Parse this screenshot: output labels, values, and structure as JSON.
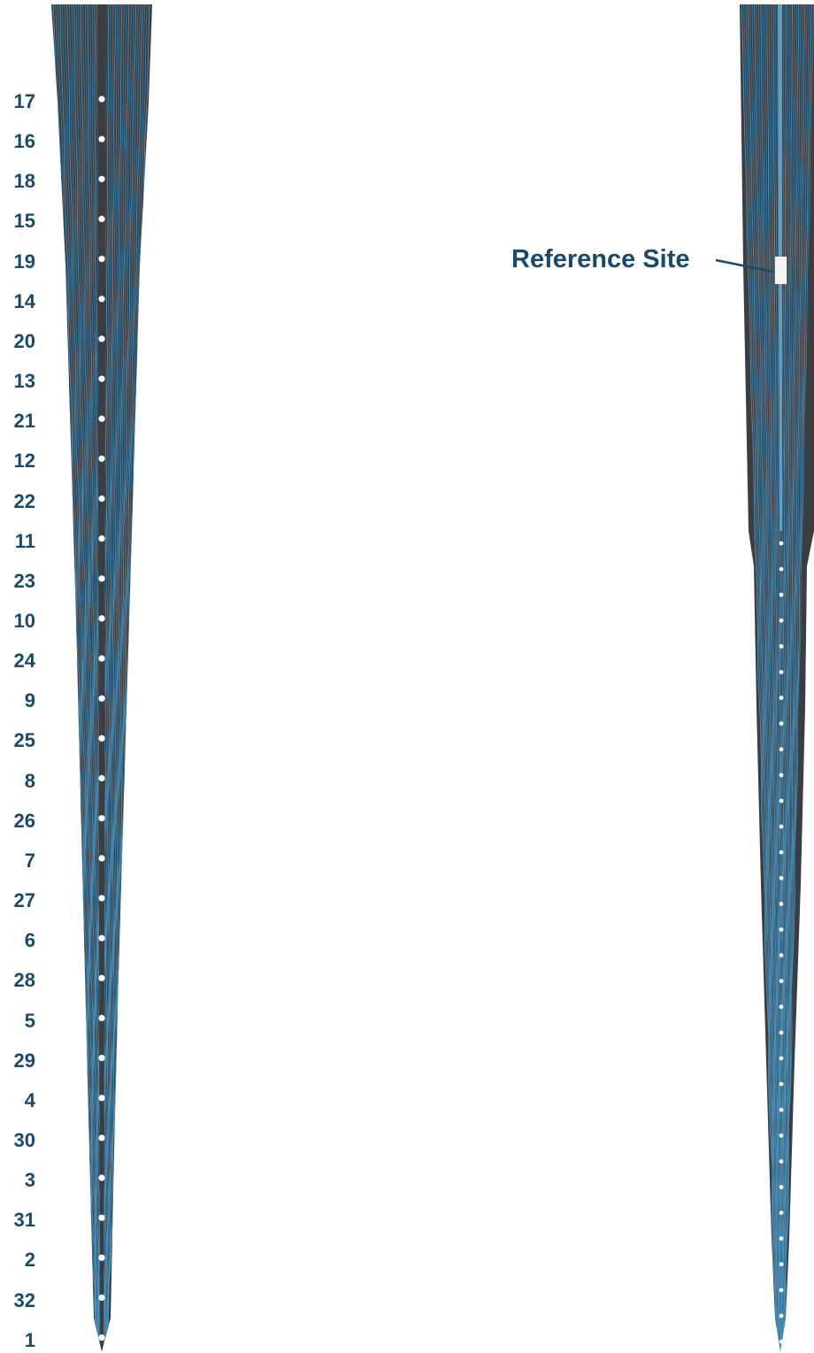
{
  "left_probe": {
    "site_labels": [
      "17",
      "16",
      "18",
      "15",
      "19",
      "14",
      "20",
      "13",
      "21",
      "12",
      "22",
      "11",
      "23",
      "10",
      "24",
      "9",
      "25",
      "8",
      "26",
      "7",
      "27",
      "6",
      "28",
      "5",
      "29",
      "4",
      "30",
      "3",
      "31",
      "2",
      "32",
      "1"
    ]
  },
  "right_probe": {
    "reference_label": "Reference Site",
    "site_count": 32
  },
  "colors": {
    "shank": "#3a3d42",
    "trace": "#3f85b0",
    "trace_light": "#5aa0c8",
    "site": "#ffffff",
    "label": "#174a6b"
  }
}
